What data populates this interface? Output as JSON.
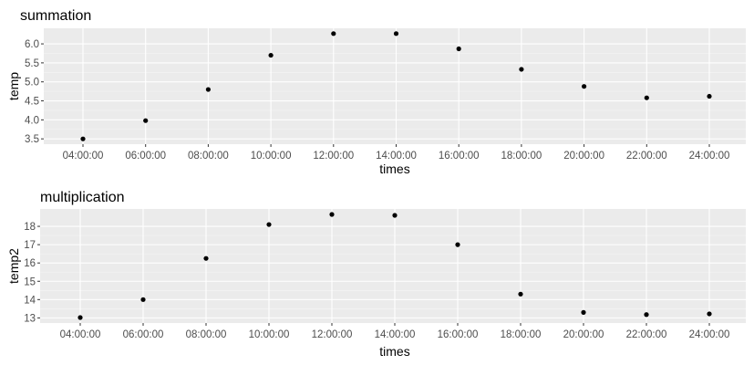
{
  "chart_data": [
    {
      "type": "scatter",
      "title": "summation",
      "xlabel": "times",
      "ylabel": "temp",
      "x": [
        "04:00:00",
        "06:00:00",
        "08:00:00",
        "10:00:00",
        "12:00:00",
        "14:00:00",
        "16:00:00",
        "18:00:00",
        "20:00:00",
        "22:00:00",
        "24:00:00"
      ],
      "y": [
        3.5,
        3.98,
        4.8,
        5.7,
        6.27,
        6.27,
        5.87,
        5.33,
        4.88,
        4.58,
        4.62
      ],
      "yticks": [
        3.5,
        4.0,
        4.5,
        5.0,
        5.5,
        6.0
      ],
      "ytick_labels": [
        "3.5",
        "4.0",
        "4.5",
        "5.0",
        "5.5",
        "6.0"
      ],
      "ylim": [
        3.36,
        6.41
      ],
      "grid": true,
      "point_color": "#000000",
      "panel_color": "#ebebeb"
    },
    {
      "type": "scatter",
      "title": "multiplication",
      "xlabel": "times",
      "ylabel": "temp2",
      "x": [
        "04:00:00",
        "06:00:00",
        "08:00:00",
        "10:00:00",
        "12:00:00",
        "14:00:00",
        "16:00:00",
        "18:00:00",
        "20:00:00",
        "22:00:00",
        "24:00:00"
      ],
      "y": [
        13.02,
        14.0,
        16.25,
        18.1,
        18.65,
        18.6,
        17.0,
        14.3,
        13.3,
        13.18,
        13.22
      ],
      "yticks": [
        13,
        14,
        15,
        16,
        17,
        18
      ],
      "ytick_labels": [
        "13",
        "14",
        "15",
        "16",
        "17",
        "18"
      ],
      "ylim": [
        12.72,
        18.95
      ],
      "grid": true,
      "point_color": "#000000",
      "panel_color": "#ebebeb"
    }
  ]
}
